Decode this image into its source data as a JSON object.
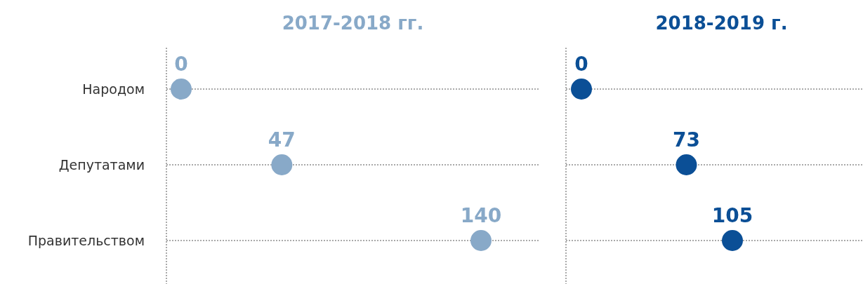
{
  "chart_data": [
    {
      "type": "scatter",
      "title": "2017-2018 гг.",
      "orientation": "horizontal",
      "categories": [
        "Народом",
        "Депутатами",
        "Правительством"
      ],
      "series": [
        {
          "color": "#88a9c8",
          "values": [
            0,
            47,
            140
          ]
        }
      ],
      "data_labels": true,
      "grid": "y",
      "tick_labels": "y",
      "marker": "circle"
    },
    {
      "type": "scatter",
      "title": "2018-2019 г.",
      "orientation": "horizontal",
      "categories": [
        null,
        null,
        null
      ],
      "series": [
        {
          "color": "#0b4f96",
          "values": [
            0,
            73,
            105
          ]
        }
      ],
      "data_labels": true,
      "grid": "y",
      "tick_labels": false,
      "marker": "circle"
    }
  ]
}
